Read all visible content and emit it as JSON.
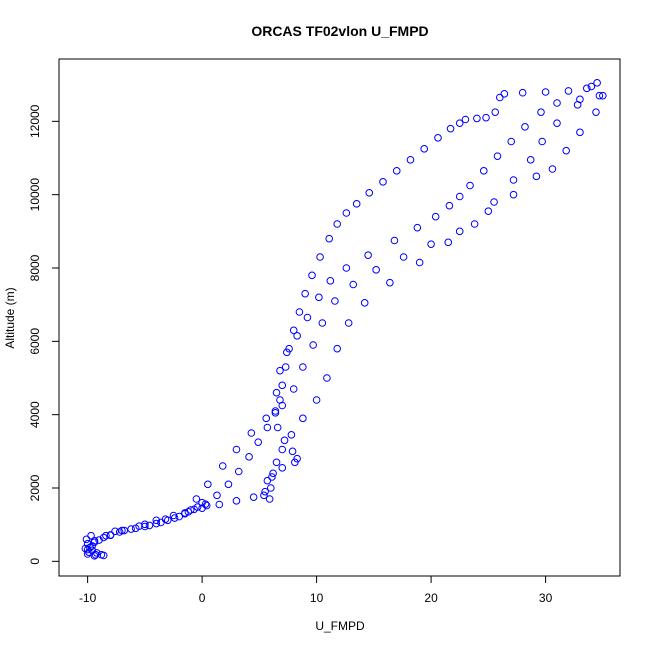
{
  "chart_data": {
    "type": "scatter",
    "title": "ORCAS TF02vlon U_FMPD",
    "xlabel": "U_FMPD",
    "ylabel": "Altitude (m)",
    "xlim": [
      -12.5,
      36.5
    ],
    "ylim": [
      -400,
      13700
    ],
    "x_ticks": [
      -10,
      0,
      10,
      20,
      30
    ],
    "y_ticks": [
      0,
      2000,
      4000,
      6000,
      8000,
      10000,
      12000
    ],
    "grid": false,
    "legend": "none",
    "marker": "open-circle",
    "series_color": "#0000ff",
    "series": [
      {
        "points": [
          [
            -10.0,
            200
          ],
          [
            -9.4,
            150
          ],
          [
            -8.8,
            180
          ],
          [
            -9.6,
            300
          ],
          [
            -10.2,
            350
          ],
          [
            -10.0,
            480
          ],
          [
            -9.4,
            560
          ],
          [
            -8.6,
            650
          ],
          [
            -8.0,
            720
          ],
          [
            -7.2,
            800
          ],
          [
            -6.2,
            880
          ],
          [
            -5.0,
            950
          ],
          [
            -4.0,
            1030
          ],
          [
            -3.0,
            1120
          ],
          [
            -2.0,
            1220
          ],
          [
            -1.2,
            1350
          ],
          [
            -0.4,
            1480
          ],
          [
            0.3,
            1560
          ],
          [
            1.3,
            1800
          ],
          [
            2.3,
            2100
          ],
          [
            3.2,
            2450
          ],
          [
            4.1,
            2850
          ],
          [
            4.9,
            3250
          ],
          [
            5.7,
            3650
          ],
          [
            6.4,
            4050
          ],
          [
            6.8,
            4400
          ],
          [
            7.0,
            4800
          ],
          [
            7.3,
            5300
          ],
          [
            7.6,
            5800
          ],
          [
            8.0,
            6300
          ],
          [
            8.5,
            6800
          ],
          [
            9.0,
            7300
          ],
          [
            9.6,
            7800
          ],
          [
            10.3,
            8300
          ],
          [
            11.1,
            8800
          ],
          [
            11.8,
            9200
          ],
          [
            12.6,
            9500
          ],
          [
            13.5,
            9750
          ],
          [
            14.6,
            10050
          ],
          [
            15.8,
            10350
          ],
          [
            17.0,
            10650
          ],
          [
            18.2,
            10950
          ],
          [
            19.4,
            11250
          ],
          [
            20.6,
            11550
          ],
          [
            21.7,
            11800
          ],
          [
            22.5,
            11950
          ],
          [
            23.0,
            12050
          ],
          [
            24.0,
            12080
          ],
          [
            24.8,
            12100
          ],
          [
            25.6,
            12250
          ],
          [
            26.0,
            12650
          ],
          [
            26.4,
            12750
          ],
          [
            28.0,
            12780
          ],
          [
            30.0,
            12800
          ],
          [
            32.0,
            12830
          ],
          [
            33.6,
            12900
          ],
          [
            34.0,
            12950
          ],
          [
            34.5,
            13050
          ],
          [
            34.7,
            12700
          ],
          [
            32.8,
            12450
          ],
          [
            31.0,
            11950
          ],
          [
            29.7,
            11450
          ],
          [
            28.7,
            10950
          ],
          [
            27.2,
            10400
          ],
          [
            25.5,
            9800
          ],
          [
            23.8,
            9200
          ],
          [
            21.5,
            8700
          ],
          [
            19.0,
            8150
          ],
          [
            16.4,
            7600
          ],
          [
            14.2,
            7050
          ],
          [
            12.8,
            6500
          ],
          [
            11.8,
            5800
          ],
          [
            10.9,
            5000
          ],
          [
            10.0,
            4400
          ],
          [
            8.8,
            3900
          ],
          [
            7.8,
            3450
          ],
          [
            7.0,
            3050
          ],
          [
            6.5,
            2700
          ],
          [
            6.1,
            2300
          ],
          [
            6.0,
            2000
          ],
          [
            5.9,
            1700
          ],
          [
            5.4,
            1800
          ],
          [
            4.5,
            1750
          ],
          [
            3.0,
            1650
          ],
          [
            1.5,
            1550
          ],
          [
            0.0,
            1450
          ],
          [
            -1.0,
            1400
          ],
          [
            -2.5,
            1250
          ],
          [
            -4.0,
            1120
          ],
          [
            -5.5,
            960
          ],
          [
            -6.8,
            840
          ],
          [
            -8.0,
            710
          ],
          [
            -9.0,
            580
          ],
          [
            -9.6,
            420
          ],
          [
            -9.9,
            250
          ],
          [
            -9.3,
            180
          ],
          [
            -8.6,
            160
          ],
          [
            -9.2,
            230
          ],
          [
            -9.8,
            380
          ],
          [
            -10.1,
            600
          ],
          [
            -9.7,
            700
          ],
          [
            -7.6,
            820
          ],
          [
            -5.8,
            900
          ],
          [
            -4.6,
            980
          ],
          [
            -3.6,
            1060
          ],
          [
            -2.4,
            1180
          ],
          [
            -1.5,
            1300
          ],
          [
            -0.7,
            1420
          ],
          [
            0.4,
            1520
          ],
          [
            5.5,
            1900
          ],
          [
            5.7,
            2200
          ],
          [
            6.2,
            2400
          ],
          [
            7.0,
            2550
          ],
          [
            8.1,
            2700
          ],
          [
            8.3,
            2800
          ],
          [
            7.9,
            3000
          ],
          [
            7.2,
            3300
          ],
          [
            6.6,
            3650
          ],
          [
            6.4,
            4100
          ],
          [
            6.5,
            4600
          ],
          [
            6.8,
            5200
          ],
          [
            7.4,
            5700
          ],
          [
            8.3,
            6150
          ],
          [
            9.2,
            6650
          ],
          [
            10.2,
            7200
          ],
          [
            11.2,
            7650
          ],
          [
            12.6,
            8000
          ],
          [
            14.5,
            8350
          ],
          [
            16.8,
            8750
          ],
          [
            18.8,
            9100
          ],
          [
            20.4,
            9400
          ],
          [
            21.6,
            9700
          ],
          [
            22.5,
            9950
          ],
          [
            23.4,
            10250
          ],
          [
            24.6,
            10650
          ],
          [
            25.8,
            11050
          ],
          [
            27.0,
            11450
          ],
          [
            28.2,
            11850
          ],
          [
            29.6,
            12250
          ],
          [
            31.0,
            12500
          ],
          [
            33.0,
            12600
          ],
          [
            35.0,
            12700
          ],
          [
            34.4,
            12250
          ],
          [
            33.0,
            11700
          ],
          [
            31.8,
            11200
          ],
          [
            30.6,
            10700
          ],
          [
            29.2,
            10500
          ],
          [
            27.2,
            10000
          ],
          [
            25.0,
            9550
          ],
          [
            22.5,
            9000
          ],
          [
            20.0,
            8650
          ],
          [
            17.6,
            8300
          ],
          [
            15.2,
            7950
          ],
          [
            13.2,
            7550
          ],
          [
            11.6,
            7100
          ],
          [
            10.5,
            6500
          ],
          [
            9.7,
            5900
          ],
          [
            8.8,
            5300
          ],
          [
            8.0,
            4700
          ],
          [
            7.0,
            4250
          ],
          [
            5.6,
            3900
          ],
          [
            4.3,
            3500
          ],
          [
            3.0,
            3050
          ],
          [
            1.8,
            2600
          ],
          [
            0.5,
            2100
          ],
          [
            -0.5,
            1700
          ],
          [
            0.0,
            1600
          ],
          [
            -1.5,
            1320
          ],
          [
            -3.2,
            1150
          ],
          [
            -5.0,
            1010
          ],
          [
            -7.0,
            840
          ],
          [
            -8.4,
            700
          ],
          [
            -9.4,
            520
          ],
          [
            -10.0,
            320
          ]
        ]
      }
    ]
  }
}
